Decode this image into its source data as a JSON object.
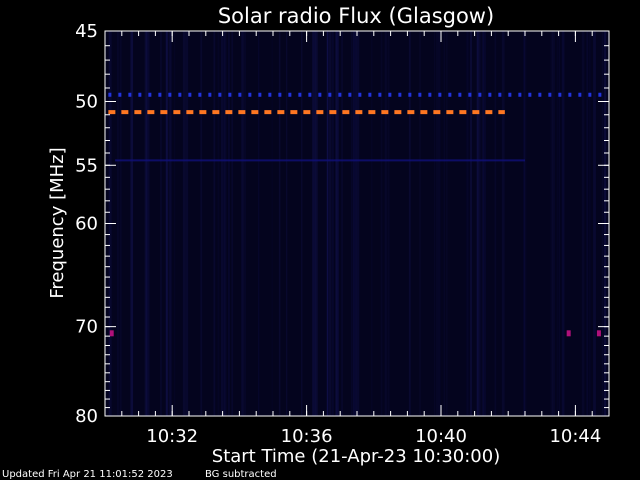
{
  "chart_data": {
    "type": "heatmap",
    "title": "Solar radio Flux (Glasgow)",
    "ylabel": "Frequency [MHz]",
    "xlabel": "Start Time (21-Apr-23 10:30:00)",
    "y_scale": "log",
    "ylim": [
      45,
      80
    ],
    "y_ticks": [
      45,
      50,
      55,
      60,
      70,
      80
    ],
    "y_tick_labels": [
      "45",
      "50",
      "55",
      "60",
      "70",
      "80"
    ],
    "x_range_minutes": [
      0,
      15
    ],
    "x_ticks_minutes": [
      2,
      6,
      10,
      14
    ],
    "x_tick_labels": [
      "10:32",
      "10:36",
      "10:40",
      "10:44"
    ],
    "features": [
      {
        "kind": "dashed-line",
        "freq_mhz": 50.8,
        "from_min": 0.1,
        "to_min": 11.9,
        "color": "#ff7722",
        "name": "interference 50.8 MHz"
      },
      {
        "kind": "dotted-line",
        "freq_mhz": 49.5,
        "from_min": 0.1,
        "to_min": 14.9,
        "color": "#2233dd",
        "name": "interference 49.5 MHz"
      },
      {
        "kind": "faint-line",
        "freq_mhz": 54.6,
        "from_min": 0.3,
        "to_min": 12.5,
        "color": "#10107a",
        "name": "interference 54.6 MHz"
      },
      {
        "kind": "spot",
        "freq_mhz": 70.7,
        "at_min": 0.2,
        "color": "#b0107a"
      },
      {
        "kind": "spot",
        "freq_mhz": 70.7,
        "at_min": 13.8,
        "color": "#b0107a"
      },
      {
        "kind": "spot",
        "freq_mhz": 70.7,
        "at_min": 14.7,
        "color": "#b0107a"
      }
    ],
    "background_color": "#04041e",
    "colors": {
      "axes": "#ffffff",
      "background": "#000000"
    }
  },
  "footer": {
    "updated": "Updated Fri Apr 21 11:01:52 2023",
    "note": "BG subtracted"
  }
}
